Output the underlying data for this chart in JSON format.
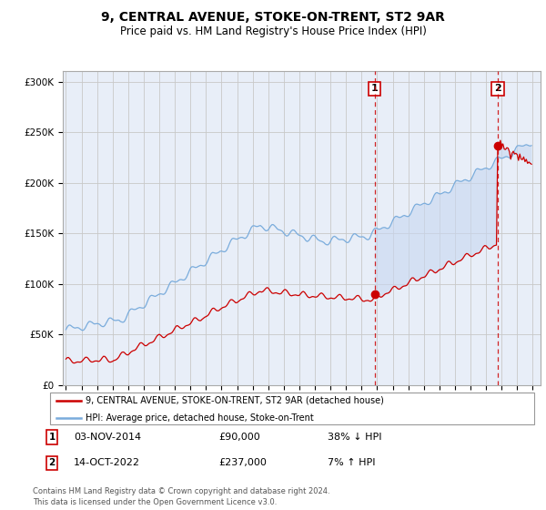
{
  "title": "9, CENTRAL AVENUE, STOKE-ON-TRENT, ST2 9AR",
  "subtitle": "Price paid vs. HM Land Registry's House Price Index (HPI)",
  "title_fontsize": 10,
  "subtitle_fontsize": 8.5,
  "ylim": [
    0,
    310000
  ],
  "yticks": [
    0,
    50000,
    100000,
    150000,
    200000,
    250000,
    300000
  ],
  "ytick_labels": [
    "£0",
    "£50K",
    "£100K",
    "£150K",
    "£200K",
    "£250K",
    "£300K"
  ],
  "bg_color": "#ffffff",
  "plot_bg_color": "#e8eef8",
  "grid_color": "#c8c8c8",
  "hpi_color": "#7aacdc",
  "price_color": "#cc0000",
  "shade_color": "#c8d8f0",
  "marker1_price": 90000,
  "marker2_price": 237000,
  "legend_entry1": "9, CENTRAL AVENUE, STOKE-ON-TRENT, ST2 9AR (detached house)",
  "legend_entry2": "HPI: Average price, detached house, Stoke-on-Trent",
  "table_row1": [
    "1",
    "03-NOV-2014",
    "£90,000",
    "38% ↓ HPI"
  ],
  "table_row2": [
    "2",
    "14-OCT-2022",
    "£237,000",
    "7% ↑ HPI"
  ],
  "footnote": "Contains HM Land Registry data © Crown copyright and database right 2024.\nThis data is licensed under the Open Government Licence v3.0.",
  "xstart_year": 1995,
  "xend_year": 2025
}
